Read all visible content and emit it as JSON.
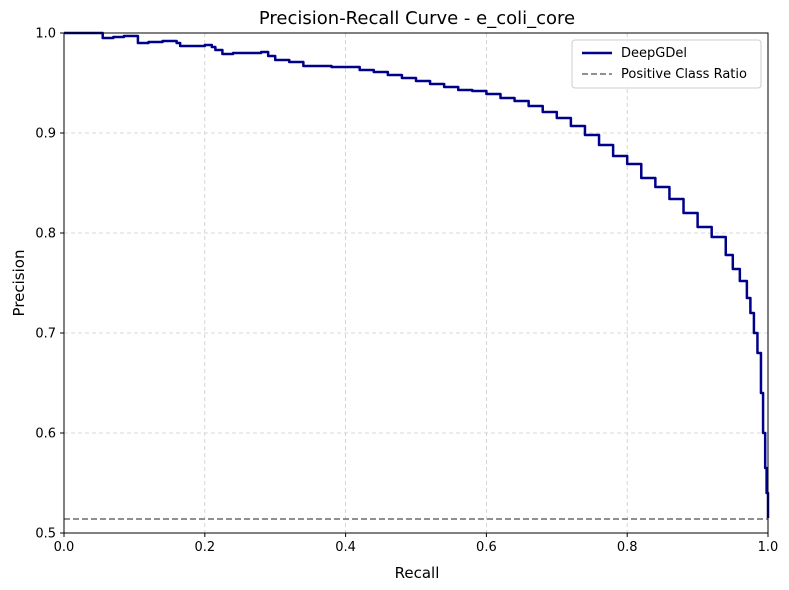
{
  "chart_data": {
    "type": "line",
    "title": "Precision-Recall Curve - e_coli_core",
    "xlabel": "Recall",
    "ylabel": "Precision",
    "xlim": [
      0.0,
      1.0
    ],
    "ylim": [
      0.5,
      1.0
    ],
    "xticks": [
      "0.0",
      "0.2",
      "0.4",
      "0.6",
      "0.8",
      "1.0"
    ],
    "yticks": [
      "0.5",
      "0.6",
      "0.7",
      "0.8",
      "0.9",
      "1.0"
    ],
    "grid": true,
    "legend_position": "upper-right",
    "series": [
      {
        "name": "DeepGDel",
        "color": "#00008b",
        "style": "solid",
        "x": [
          0.0,
          0.052,
          0.055,
          0.07,
          0.085,
          0.1,
          0.105,
          0.108,
          0.12,
          0.14,
          0.155,
          0.16,
          0.165,
          0.18,
          0.2,
          0.21,
          0.215,
          0.225,
          0.24,
          0.26,
          0.28,
          0.29,
          0.3,
          0.32,
          0.34,
          0.36,
          0.38,
          0.4,
          0.42,
          0.44,
          0.46,
          0.48,
          0.5,
          0.52,
          0.54,
          0.56,
          0.58,
          0.6,
          0.62,
          0.64,
          0.66,
          0.68,
          0.7,
          0.72,
          0.74,
          0.76,
          0.78,
          0.8,
          0.82,
          0.84,
          0.86,
          0.88,
          0.9,
          0.92,
          0.94,
          0.95,
          0.96,
          0.97,
          0.975,
          0.98,
          0.985,
          0.99,
          0.993,
          0.996,
          0.998,
          1.0
        ],
        "y": [
          1.0,
          1.0,
          0.995,
          0.996,
          0.997,
          0.997,
          0.99,
          0.99,
          0.991,
          0.992,
          0.992,
          0.99,
          0.987,
          0.987,
          0.988,
          0.986,
          0.983,
          0.979,
          0.98,
          0.98,
          0.981,
          0.977,
          0.973,
          0.971,
          0.967,
          0.967,
          0.966,
          0.966,
          0.963,
          0.961,
          0.958,
          0.955,
          0.952,
          0.949,
          0.946,
          0.943,
          0.942,
          0.939,
          0.935,
          0.932,
          0.927,
          0.921,
          0.915,
          0.907,
          0.898,
          0.888,
          0.877,
          0.869,
          0.855,
          0.846,
          0.834,
          0.82,
          0.806,
          0.796,
          0.778,
          0.764,
          0.752,
          0.735,
          0.72,
          0.7,
          0.68,
          0.64,
          0.6,
          0.565,
          0.54,
          0.515
        ]
      },
      {
        "name": "Positive Class Ratio",
        "color": "#808080",
        "style": "dashed",
        "x": [
          0.0,
          1.0
        ],
        "y": [
          0.514,
          0.514
        ]
      }
    ]
  }
}
